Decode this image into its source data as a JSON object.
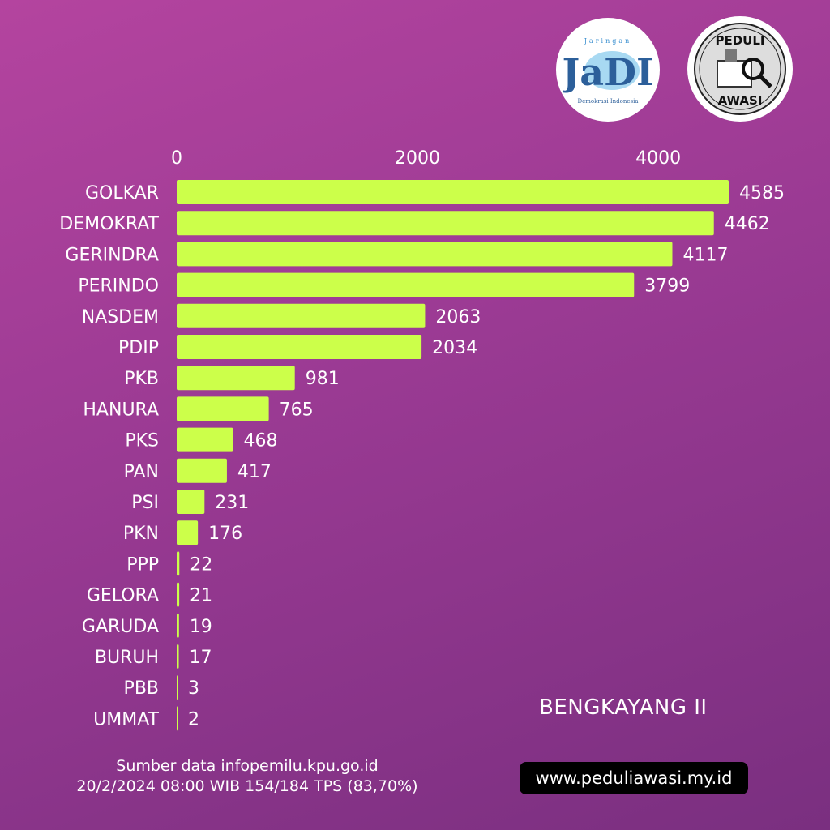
{
  "logos": {
    "left": "Jaringan Demokrasi Indonesia (JaDI)",
    "right": "PEDULI AWASI"
  },
  "chart_data": {
    "type": "bar",
    "orientation": "horizontal",
    "categories": [
      "GOLKAR",
      "DEMOKRAT",
      "GERINDRA",
      "PERINDO",
      "NASDEM",
      "PDIP",
      "PKB",
      "HANURA",
      "PKS",
      "PAN",
      "PSI",
      "PKN",
      "PPP",
      "GELORA",
      "GARUDA",
      "BURUH",
      "PBB",
      "UMMAT"
    ],
    "values": [
      4585,
      4462,
      4117,
      3799,
      2063,
      2034,
      981,
      765,
      468,
      417,
      231,
      176,
      22,
      21,
      19,
      17,
      3,
      2
    ],
    "xticks": [
      0,
      2000,
      4000
    ],
    "xlim": [
      0,
      4585
    ],
    "axis_position": "top",
    "grid": false,
    "bar_color": "#ccff4a",
    "title": "BENGKAYANG II"
  },
  "footer": {
    "source": "Sumber data infopemilu.kpu.go.id",
    "timestamp": "20/2/2024 08:00 WIB 154/184 TPS  (83,70%)",
    "website": "www.peduliawasi.my.id"
  }
}
